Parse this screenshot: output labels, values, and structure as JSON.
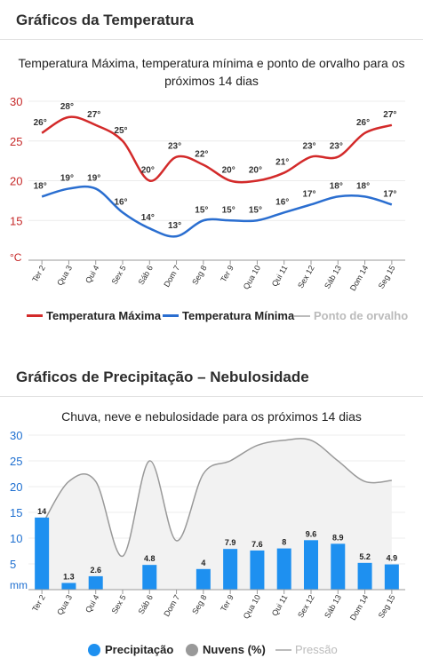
{
  "sections": [
    {
      "title": "Gráficos da Temperatura",
      "subtitle": "Temperatura Máxima, temperatura mínima e ponto de orvalho para os próximos 14 dias"
    },
    {
      "title": "Gráficos de Precipitação – Nebulosidade",
      "subtitle": "Chuva, neve e nebulosidade para os próximos 14 dias"
    }
  ],
  "colors": {
    "max": "#d32a2a",
    "min": "#2a6ed0",
    "dew": "#bbbbbb",
    "precip": "#1e90f0",
    "clouds": "#999999",
    "axis_red": "#c62828",
    "axis_blue": "#1e6fd0"
  },
  "chart_data": [
    {
      "type": "line",
      "categories": [
        "Ter 2",
        "Qua 3",
        "Qui 4",
        "Sex 5",
        "Sáb 6",
        "Dom 7",
        "Seg 8",
        "Ter 9",
        "Qua 10",
        "Qui 11",
        "Sex 12",
        "Sáb 13",
        "Dom 14",
        "Seg 15"
      ],
      "ylim": [
        10,
        30
      ],
      "yticks": [
        15,
        20,
        25,
        30
      ],
      "yunit": "°C",
      "series": [
        {
          "name": "Temperatura Máxima",
          "values": [
            26,
            28,
            27,
            25,
            20,
            23,
            22,
            20,
            20,
            21,
            23,
            23,
            26,
            27
          ],
          "labels": [
            "26°",
            "28°",
            "27°",
            "25°",
            "20°",
            "23°",
            "22°",
            "20°",
            "20°",
            "21°",
            "23°",
            "23°",
            "26°",
            "27°"
          ]
        },
        {
          "name": "Temperatura Mínima",
          "values": [
            18,
            19,
            19,
            16,
            14,
            13,
            15,
            15,
            15,
            16,
            17,
            18,
            18,
            17
          ],
          "labels": [
            "18°",
            "19°",
            "19°",
            "16°",
            "14°",
            "13°",
            "15°",
            "15°",
            "15°",
            "16°",
            "17°",
            "18°",
            "18°",
            "17°"
          ]
        }
      ],
      "legend": [
        "Temperatura Máxima",
        "Temperatura Mínima",
        "Ponto de orvalho"
      ],
      "legend_position": "bottom"
    },
    {
      "type": "bar",
      "categories": [
        "Ter 2",
        "Qua 3",
        "Qui 4",
        "Sex 5",
        "Sáb 6",
        "Dom 7",
        "Seg 8",
        "Ter 9",
        "Qua 10",
        "Qui 11",
        "Sex 12",
        "Sáb 13",
        "Dom 14",
        "Seg 15"
      ],
      "ylim": [
        0,
        30
      ],
      "yticks": [
        5,
        10,
        15,
        20,
        25,
        30
      ],
      "yunit": "mm",
      "series": [
        {
          "name": "Precipitação",
          "values": [
            14,
            1.3,
            2.6,
            0,
            4.8,
            0,
            4,
            7.9,
            7.6,
            8,
            9.6,
            8.9,
            5.2,
            4.9
          ],
          "labels": [
            "14",
            "1.3",
            "2.6",
            "",
            "4.8",
            "",
            "4",
            "7.9",
            "7.6",
            "8",
            "9.6",
            "8.9",
            "5.2",
            "4.9"
          ]
        },
        {
          "name": "Nuvens (%)",
          "values": [
            12.5,
            21,
            21,
            6.5,
            25,
            9.5,
            22.5,
            25,
            28,
            29,
            29,
            25,
            21,
            21.2
          ]
        }
      ],
      "legend": [
        "Precipitação",
        "Nuvens (%)",
        "Pressão"
      ],
      "legend_position": "bottom"
    }
  ]
}
